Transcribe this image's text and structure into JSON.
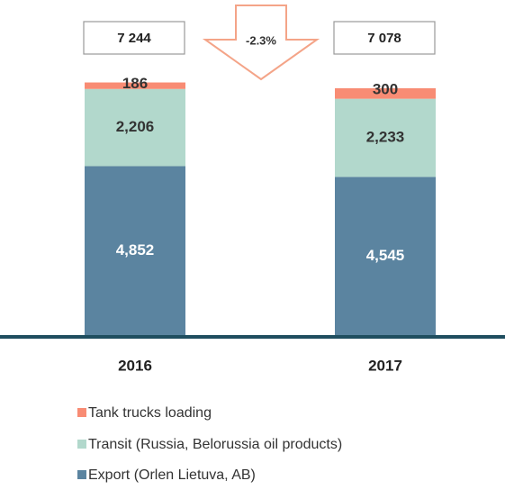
{
  "chart_data": {
    "type": "stacked_bar",
    "categories": [
      "2016",
      "2017"
    ],
    "series": [
      {
        "name": "Export (Orlen Lietuva, AB)",
        "color": "#5b84a0",
        "values": [
          4852,
          4545
        ],
        "value_labels": [
          "4,852",
          "4,545"
        ]
      },
      {
        "name": "Transit (Russia, Belorussia oil products)",
        "color": "#b2d8cc",
        "values": [
          2206,
          2233
        ],
        "value_labels": [
          "2,206",
          "2,233"
        ]
      },
      {
        "name": "Tank trucks loading",
        "color": "#f88c74",
        "values": [
          186,
          300
        ]
      }
    ],
    "totals": [
      7244,
      7078
    ],
    "total_labels": [
      "7 244",
      "7 078"
    ],
    "annotation": "-2.3%",
    "ylim": [
      0,
      9600
    ]
  }
}
